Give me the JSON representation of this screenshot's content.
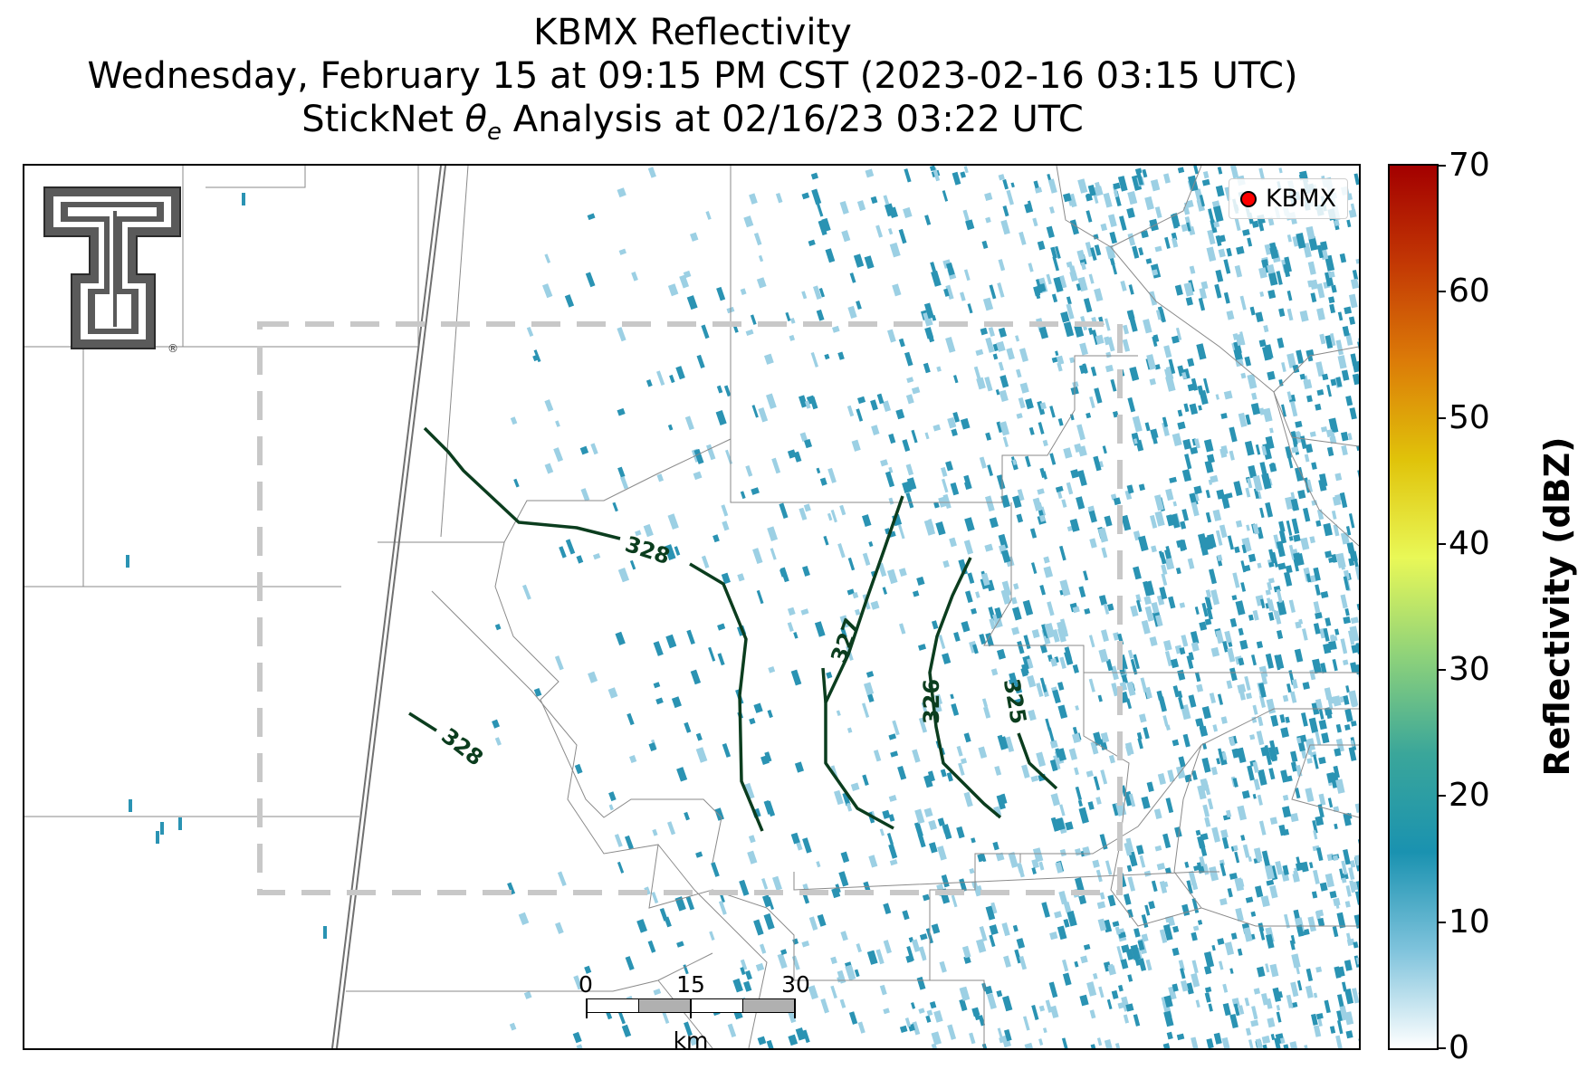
{
  "title": {
    "line1": "KBMX Reflectivity",
    "line2": "Wednesday, February 15 at 09:15 PM CST (2023-02-16 03:15 UTC)",
    "line3_prefix": "StickNet ",
    "line3_symbol": "θ",
    "line3_subscript": "e",
    "line3_suffix": " Analysis at 02/16/23 03:22 UTC"
  },
  "legend": {
    "label": "KBMX",
    "marker_color": "#ff0000"
  },
  "scale_bar": {
    "labels": [
      "0",
      "15",
      "30"
    ],
    "unit": "km"
  },
  "colorbar": {
    "title": "Reflectivity (dBZ)",
    "ticks": [
      "0",
      "10",
      "20",
      "30",
      "40",
      "50",
      "60",
      "70"
    ],
    "min": 0,
    "max": 70,
    "colors": [
      "#ffffff",
      "#7fc3dc",
      "#1a92b0",
      "#3aa69a",
      "#8ed27a",
      "#e9f857",
      "#e0c30a",
      "#dc7c08",
      "#c33804",
      "#a30000"
    ]
  },
  "contours": [
    {
      "label": "328",
      "color": "#0b3d1e"
    },
    {
      "label": "328",
      "color": "#0b3d1e"
    },
    {
      "label": "327",
      "color": "#0b3d1e"
    },
    {
      "label": "326",
      "color": "#0b3d1e"
    },
    {
      "label": "325",
      "color": "#0b3d1e"
    }
  ],
  "logo": {
    "icon": "texas-tech-double-t-logo",
    "mark": "®"
  },
  "colors": {
    "analysis_box": "#c8c8c8",
    "county_lines": "#8a8a8a",
    "echo_main": "#2a93b3",
    "echo_light": "#9cd0e4"
  }
}
